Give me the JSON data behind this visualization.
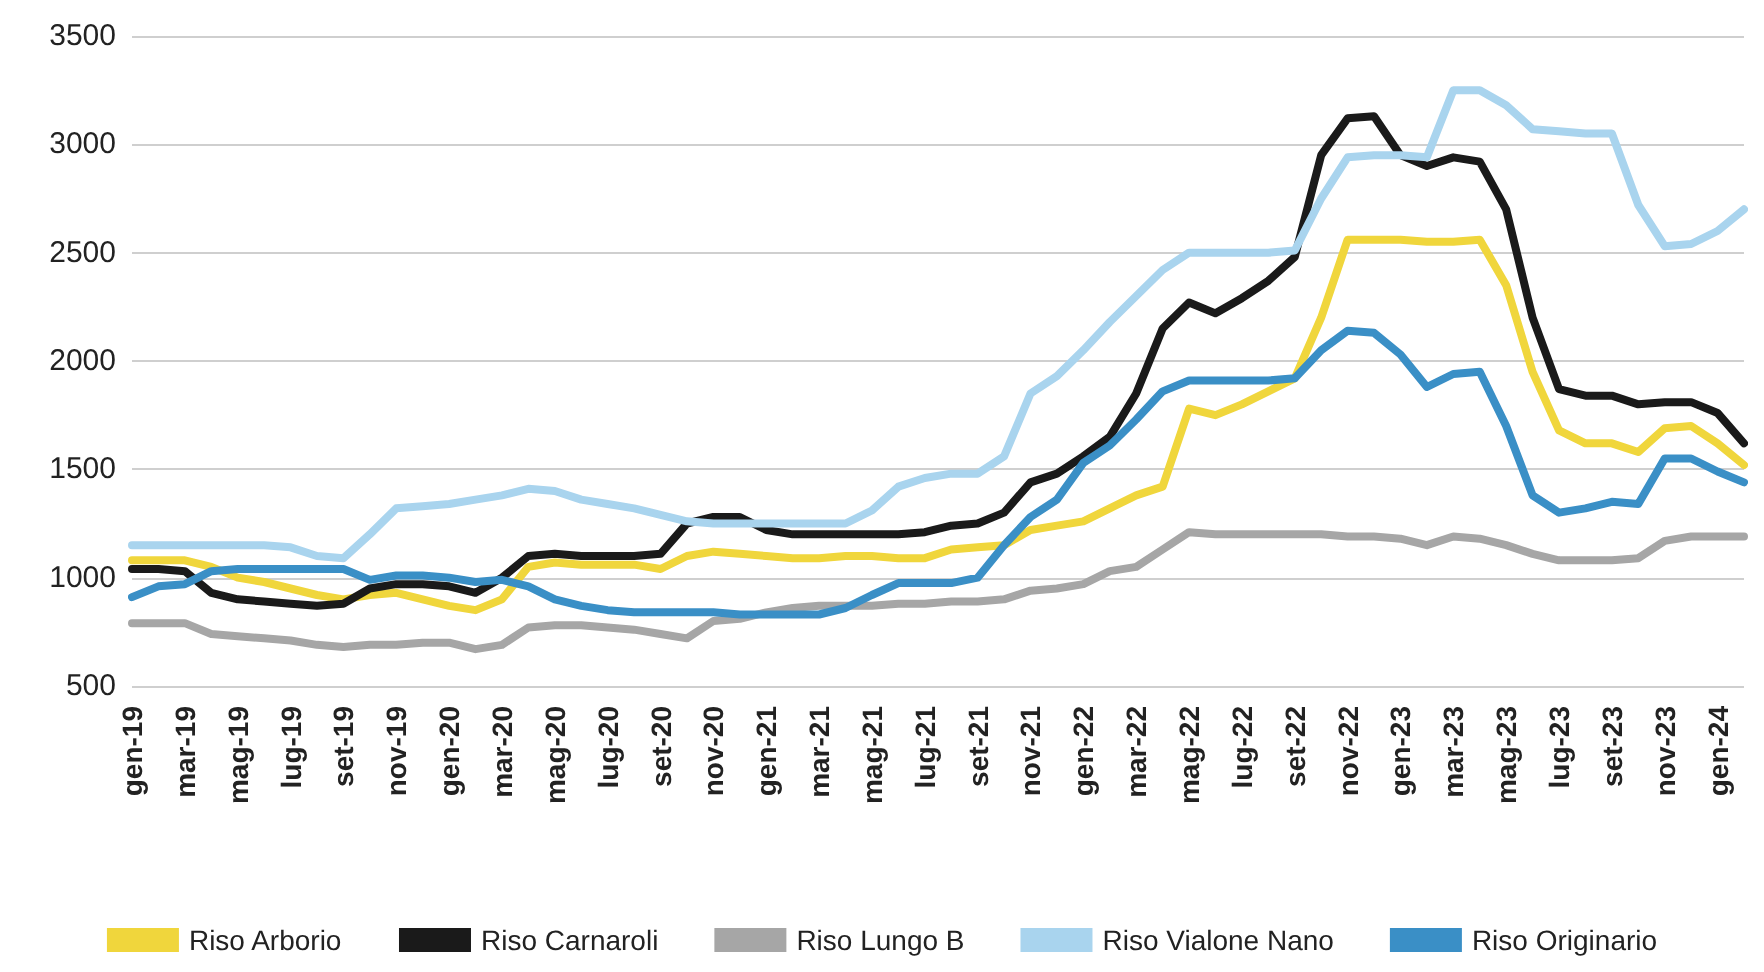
{
  "chart_data": {
    "type": "line",
    "categories": [
      "gen-19",
      null,
      "mar-19",
      null,
      "mag-19",
      null,
      "lug-19",
      null,
      "set-19",
      null,
      "nov-19",
      null,
      "gen-20",
      null,
      "mar-20",
      null,
      "mag-20",
      null,
      "lug-20",
      null,
      "set-20",
      null,
      "nov-20",
      null,
      "gen-21",
      null,
      "mar-21",
      null,
      "mag-21",
      null,
      "lug-21",
      null,
      "set-21",
      null,
      "nov-21",
      null,
      "gen-22",
      null,
      "mar-22",
      null,
      "mag-22",
      null,
      "lug-22",
      null,
      "set-22",
      null,
      "nov-22",
      null,
      "gen-23",
      null,
      "mar-23",
      null,
      "mag-23",
      null,
      "lug-23",
      null,
      "set-23",
      null,
      "nov-23",
      null,
      "gen-24",
      null
    ],
    "series": [
      {
        "name": "Riso Arborio",
        "color": "#f0d63c",
        "values": [
          1080,
          1080,
          1080,
          1050,
          1000,
          980,
          950,
          920,
          900,
          920,
          930,
          900,
          870,
          850,
          900,
          1050,
          1070,
          1060,
          1060,
          1060,
          1040,
          1100,
          1120,
          1110,
          1100,
          1090,
          1090,
          1100,
          1100,
          1090,
          1090,
          1130,
          1140,
          1150,
          1220,
          1240,
          1260,
          1320,
          1380,
          1420,
          1780,
          1750,
          1800,
          1860,
          1920,
          2200,
          2560,
          2560,
          2560,
          2550,
          2550,
          2560,
          2350,
          1950,
          1680,
          1620,
          1620,
          1580,
          1690,
          1700,
          1620,
          1520
        ]
      },
      {
        "name": "Riso Carnaroli",
        "color": "#1a1a1a",
        "values": [
          1040,
          1040,
          1030,
          930,
          900,
          890,
          880,
          870,
          880,
          950,
          970,
          970,
          960,
          930,
          1000,
          1100,
          1110,
          1100,
          1100,
          1100,
          1110,
          1250,
          1280,
          1280,
          1220,
          1200,
          1200,
          1200,
          1200,
          1200,
          1210,
          1240,
          1250,
          1300,
          1440,
          1480,
          1560,
          1650,
          1850,
          2150,
          2270,
          2220,
          2290,
          2370,
          2480,
          2950,
          3120,
          3130,
          2950,
          2900,
          2940,
          2920,
          2700,
          2200,
          1870,
          1840,
          1840,
          1800,
          1810,
          1810,
          1760,
          1620
        ]
      },
      {
        "name": "Riso Lungo B",
        "color": "#a6a6a6",
        "values": [
          790,
          790,
          790,
          740,
          730,
          720,
          710,
          690,
          680,
          690,
          690,
          700,
          700,
          670,
          690,
          770,
          780,
          780,
          770,
          760,
          740,
          720,
          800,
          810,
          840,
          860,
          870,
          870,
          870,
          880,
          880,
          890,
          890,
          900,
          940,
          950,
          970,
          1030,
          1050,
          1130,
          1210,
          1200,
          1200,
          1200,
          1200,
          1200,
          1190,
          1190,
          1180,
          1150,
          1190,
          1180,
          1150,
          1110,
          1080,
          1080,
          1080,
          1090,
          1170,
          1190,
          1190,
          1190
        ]
      },
      {
        "name": "Riso Vialone Nano",
        "color": "#a9d4ee",
        "values": [
          1150,
          1150,
          1150,
          1150,
          1150,
          1150,
          1140,
          1100,
          1090,
          1200,
          1320,
          1330,
          1340,
          1360,
          1380,
          1410,
          1400,
          1360,
          1340,
          1320,
          1290,
          1260,
          1250,
          1250,
          1250,
          1250,
          1250,
          1250,
          1310,
          1420,
          1460,
          1480,
          1480,
          1560,
          1850,
          1930,
          2050,
          2180,
          2300,
          2420,
          2500,
          2500,
          2500,
          2500,
          2510,
          2750,
          2940,
          2950,
          2950,
          2940,
          3250,
          3250,
          3180,
          3070,
          3060,
          3050,
          3050,
          2720,
          2530,
          2540,
          2600,
          2700
        ]
      },
      {
        "name": "Riso Originario",
        "color": "#3a8fc6",
        "values": [
          910,
          960,
          970,
          1030,
          1040,
          1040,
          1040,
          1040,
          1040,
          990,
          1010,
          1010,
          1000,
          980,
          990,
          960,
          900,
          870,
          850,
          840,
          840,
          840,
          840,
          830,
          830,
          830,
          830,
          860,
          920,
          975,
          975,
          975,
          1000,
          1150,
          1280,
          1360,
          1530,
          1610,
          1730,
          1860,
          1910,
          1910,
          1910,
          1910,
          1920,
          2050,
          2140,
          2130,
          2030,
          1880,
          1940,
          1950,
          1700,
          1380,
          1300,
          1320,
          1350,
          1340,
          1550,
          1550,
          1490,
          1440
        ]
      }
    ],
    "ylim": [
      500,
      3500
    ],
    "yticks": [
      500,
      1000,
      1500,
      2000,
      2500,
      3000,
      3500
    ],
    "grid": "y",
    "legend": "bottom",
    "marker": "none",
    "line_style": "solid"
  }
}
